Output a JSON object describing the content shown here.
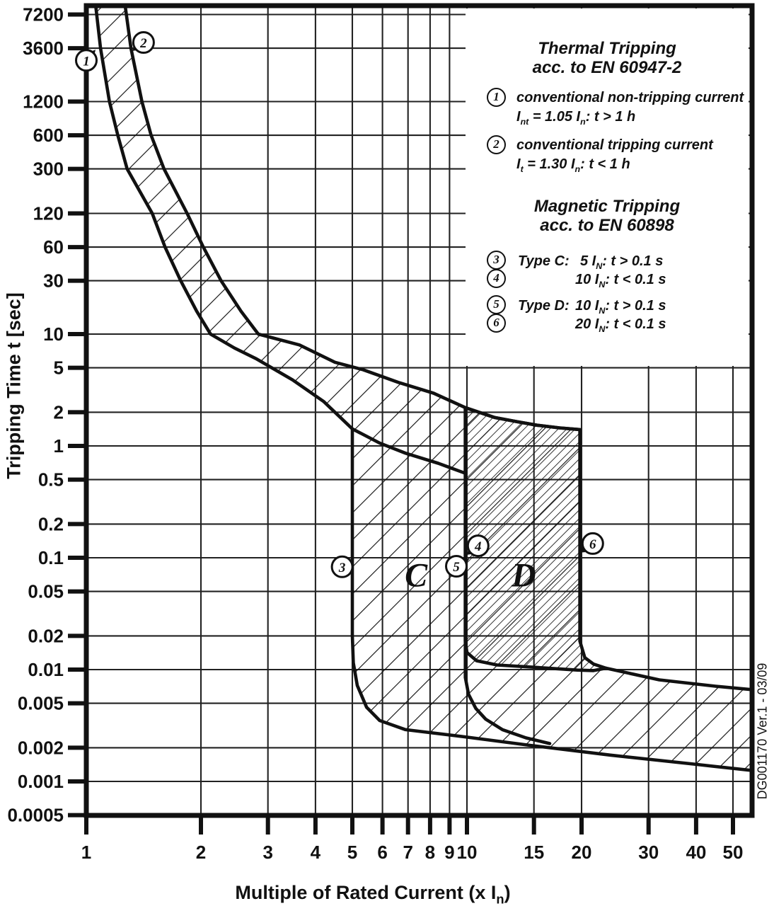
{
  "page": {
    "background": "#ffffff",
    "ink": "#111111"
  },
  "watermark": "DG001170 Ver.1 - 03/09",
  "axis_titles": {
    "y": "Tripping Time t [sec]",
    "x_pre": "Multiple of Rated Current (x I",
    "x_sub": "n",
    "x_post": ")"
  },
  "legend": {
    "thermal": {
      "title1": "Thermal Tripping",
      "title2": "acc. to EN 60947-2",
      "item1": {
        "num": "1",
        "line1": "conventional non-tripping current",
        "f_p1": "I",
        "f_s1": "nt",
        "f_p2": " = 1.05 I",
        "f_s2": "n",
        "f_p3": ":  t > 1 h"
      },
      "item2": {
        "num": "2",
        "line1": "conventional tripping current",
        "f_p1": "I",
        "f_s1": "t",
        "f_p2": " = 1.30 I",
        "f_s2": "n",
        "f_p3": ":  t < 1 h"
      }
    },
    "magnetic": {
      "title1": "Magnetic Tripping",
      "title2": "acc. to EN 60898",
      "item3": {
        "num": "3",
        "label": "Type C:",
        "f_p1": "5 I",
        "f_s1": "N",
        "f_p2": ":  t > 0.1 s"
      },
      "item4": {
        "num": "4",
        "label": "",
        "f_p1": "10 I",
        "f_s1": "N",
        "f_p2": ":  t < 0.1 s"
      },
      "item5": {
        "num": "5",
        "label": "Type D:",
        "f_p1": "10 I",
        "f_s1": "N",
        "f_p2": ":  t > 0.1 s"
      },
      "item6": {
        "num": "6",
        "label": "",
        "f_p1": "20 I",
        "f_s1": "N",
        "f_p2": ":  t < 0.1 s"
      }
    }
  },
  "chart_data": {
    "type": "area",
    "title": "MCB tripping characteristic, Type C and Type D",
    "xlabel": "Multiple of Rated Current (x In)",
    "ylabel": "Tripping Time t [sec]",
    "x_axis": {
      "scale": "log",
      "range": [
        1,
        56.5
      ],
      "tick_values": [
        1,
        2,
        3,
        4,
        5,
        6,
        7,
        8,
        9,
        10,
        15,
        20,
        30,
        40,
        50
      ],
      "tick_labels": [
        "1",
        "2",
        "3",
        "4",
        "5",
        "6",
        "7",
        "8",
        "9",
        "10",
        "15",
        "20",
        "30",
        "40",
        "50"
      ]
    },
    "y_axis": {
      "scale": "log",
      "range": [
        0.0005,
        9500
      ],
      "tick_values": [
        7200,
        3600,
        1200,
        600,
        300,
        120,
        60,
        30,
        10,
        5,
        2,
        1,
        0.5,
        0.2,
        0.1,
        0.05,
        0.02,
        0.01,
        0.005,
        0.002,
        0.001,
        0.0005
      ],
      "tick_labels": [
        "7200",
        "3600",
        "1200",
        "600",
        "300",
        "120",
        "60",
        "30",
        "10",
        "5",
        "2",
        "1",
        "0.5",
        "0.2",
        "0.1",
        "0.05",
        "0.02",
        "0.01",
        "0.005",
        "0.002",
        "0.001",
        "0.0005"
      ]
    },
    "grid": true,
    "legend_position": "top-right",
    "series": [
      {
        "name": "thermal-upper-limit",
        "role": "stroke",
        "points": [
          [
            1.26,
            9500
          ],
          [
            1.31,
            3600
          ],
          [
            1.4,
            1200
          ],
          [
            1.48,
            600
          ],
          [
            1.6,
            300
          ],
          [
            1.84,
            120
          ],
          [
            2.03,
            60
          ],
          [
            2.26,
            30
          ],
          [
            2.55,
            16
          ],
          [
            2.83,
            10
          ],
          [
            3.63,
            8.0
          ],
          [
            4.5,
            5.6
          ],
          [
            5.34,
            4.8
          ],
          [
            6.6,
            3.7
          ],
          [
            8.17,
            2.96
          ],
          [
            9.9,
            2.2
          ],
          [
            11.8,
            1.8
          ],
          [
            13.5,
            1.65
          ],
          [
            15.3,
            1.53
          ],
          [
            17.5,
            1.45
          ],
          [
            19.8,
            1.4
          ]
        ]
      },
      {
        "name": "thermal-lower-limit",
        "role": "stroke",
        "points": [
          [
            1.055,
            9500
          ],
          [
            1.09,
            3600
          ],
          [
            1.15,
            1200
          ],
          [
            1.21,
            600
          ],
          [
            1.28,
            300
          ],
          [
            1.49,
            120
          ],
          [
            1.61,
            60
          ],
          [
            1.77,
            30
          ],
          [
            1.95,
            16
          ],
          [
            2.12,
            10
          ],
          [
            2.45,
            7.5
          ],
          [
            2.8,
            6.0
          ],
          [
            3.48,
            3.9
          ],
          [
            4.2,
            2.5
          ],
          [
            5.0,
            1.42
          ],
          [
            5.9,
            1.06
          ],
          [
            6.9,
            0.86
          ],
          [
            8.4,
            0.7
          ],
          [
            9.9,
            0.57
          ]
        ]
      },
      {
        "name": "c-left-and-instantaneous-lower-limit",
        "role": "stroke",
        "points": [
          [
            5.0,
            1.42
          ],
          [
            5.0,
            0.02
          ],
          [
            5.03,
            0.0115
          ],
          [
            5.15,
            0.0072
          ],
          [
            5.45,
            0.0046
          ],
          [
            5.9,
            0.0035
          ],
          [
            6.9,
            0.0029
          ],
          [
            9.9,
            0.0025
          ],
          [
            14.7,
            0.0021
          ],
          [
            23.8,
            0.00172
          ],
          [
            40,
            0.00142
          ],
          [
            56.5,
            0.00125
          ]
        ]
      },
      {
        "name": "c-right-boundary",
        "role": "stroke",
        "points": [
          [
            9.9,
            2.2
          ],
          [
            9.9,
            0.0085
          ],
          [
            10.1,
            0.006
          ],
          [
            10.55,
            0.0045
          ],
          [
            11.2,
            0.0036
          ],
          [
            12.4,
            0.0029
          ],
          [
            14.3,
            0.00245
          ],
          [
            16.5,
            0.00218
          ]
        ]
      },
      {
        "name": "d-region-outline",
        "role": "dense-fill-stroke",
        "closed": true,
        "points": [
          [
            9.9,
            2.2
          ],
          [
            11.8,
            1.8
          ],
          [
            13.5,
            1.65
          ],
          [
            15.3,
            1.53
          ],
          [
            17.5,
            1.45
          ],
          [
            19.8,
            1.4
          ],
          [
            19.8,
            0.018
          ],
          [
            20.4,
            0.0128
          ],
          [
            21.5,
            0.0112
          ],
          [
            23.2,
            0.0103
          ],
          [
            21.5,
            0.0098
          ],
          [
            19.5,
            0.0099
          ],
          [
            15,
            0.0105
          ],
          [
            12,
            0.011
          ],
          [
            10.6,
            0.012
          ],
          [
            10.0,
            0.0142
          ],
          [
            9.9,
            0.018
          ]
        ]
      },
      {
        "name": "instantaneous-band-upper-limit",
        "role": "stroke",
        "points": [
          [
            23.2,
            0.0103
          ],
          [
            32,
            0.0081
          ],
          [
            45,
            0.0071
          ],
          [
            56.5,
            0.0066
          ]
        ]
      },
      {
        "name": "light-hatch-region",
        "role": "light-fill",
        "closed": true,
        "points": [
          [
            1.055,
            9500
          ],
          [
            1.09,
            3600
          ],
          [
            1.15,
            1200
          ],
          [
            1.21,
            600
          ],
          [
            1.28,
            300
          ],
          [
            1.49,
            120
          ],
          [
            1.61,
            60
          ],
          [
            1.77,
            30
          ],
          [
            1.95,
            16
          ],
          [
            2.12,
            10
          ],
          [
            2.45,
            7.5
          ],
          [
            2.8,
            6.0
          ],
          [
            3.48,
            3.9
          ],
          [
            4.2,
            2.5
          ],
          [
            5.0,
            1.42
          ],
          [
            5.0,
            0.02
          ],
          [
            5.03,
            0.0115
          ],
          [
            5.15,
            0.0072
          ],
          [
            5.45,
            0.0046
          ],
          [
            5.9,
            0.0035
          ],
          [
            6.9,
            0.0029
          ],
          [
            9.9,
            0.0025
          ],
          [
            14.7,
            0.0021
          ],
          [
            23.8,
            0.00172
          ],
          [
            40,
            0.00142
          ],
          [
            56.5,
            0.00125
          ],
          [
            56.5,
            0.0066
          ],
          [
            45,
            0.0071
          ],
          [
            32,
            0.0081
          ],
          [
            23.2,
            0.0103
          ],
          [
            21.5,
            0.0112
          ],
          [
            20.4,
            0.0128
          ],
          [
            19.8,
            0.018
          ],
          [
            19.8,
            1.4
          ],
          [
            17.5,
            1.45
          ],
          [
            15.3,
            1.53
          ],
          [
            13.5,
            1.65
          ],
          [
            11.8,
            1.8
          ],
          [
            9.9,
            2.2
          ],
          [
            8.17,
            2.96
          ],
          [
            6.6,
            3.7
          ],
          [
            5.34,
            4.8
          ],
          [
            4.5,
            5.6
          ],
          [
            3.63,
            8.0
          ],
          [
            2.83,
            10
          ],
          [
            2.55,
            16
          ],
          [
            2.26,
            30
          ],
          [
            2.03,
            60
          ],
          [
            1.84,
            120
          ],
          [
            1.6,
            300
          ],
          [
            1.48,
            600
          ],
          [
            1.4,
            1200
          ],
          [
            1.31,
            3600
          ],
          [
            1.26,
            9500
          ]
        ]
      }
    ],
    "markers": [
      {
        "num": "1",
        "x": 1.0,
        "t": 2800,
        "adx": 13,
        "ady": -15
      },
      {
        "num": "2",
        "x": 1.414,
        "t": 4050,
        "adx": -16,
        "ady": 12
      },
      {
        "num": "3",
        "x": 4.7,
        "t": 0.083,
        "adx": 17,
        "ady": -11
      },
      {
        "num": "4",
        "x": 10.7,
        "t": 0.128,
        "adx": -17,
        "ady": 13
      },
      {
        "num": "5",
        "x": 9.38,
        "t": 0.084,
        "adx": 18,
        "ady": -10
      },
      {
        "num": "6",
        "x": 21.4,
        "t": 0.134,
        "adx": -20,
        "ady": 13
      }
    ],
    "region_labels": [
      {
        "text": "C",
        "x": 7.35,
        "t": 0.07
      },
      {
        "text": "D",
        "x": 14.1,
        "t": 0.07
      }
    ]
  }
}
